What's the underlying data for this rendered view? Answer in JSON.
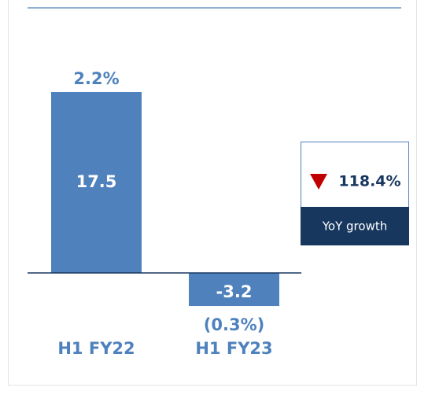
{
  "chart_data": {
    "type": "bar",
    "categories": [
      "H1 FY22",
      "H1 FY23"
    ],
    "values": [
      17.5,
      -3.2
    ],
    "color": "#4f81bd",
    "margin_labels": [
      "2.2%",
      "(0.3%)"
    ],
    "callout": {
      "value": "118.4%",
      "label": "YoY growth"
    }
  }
}
